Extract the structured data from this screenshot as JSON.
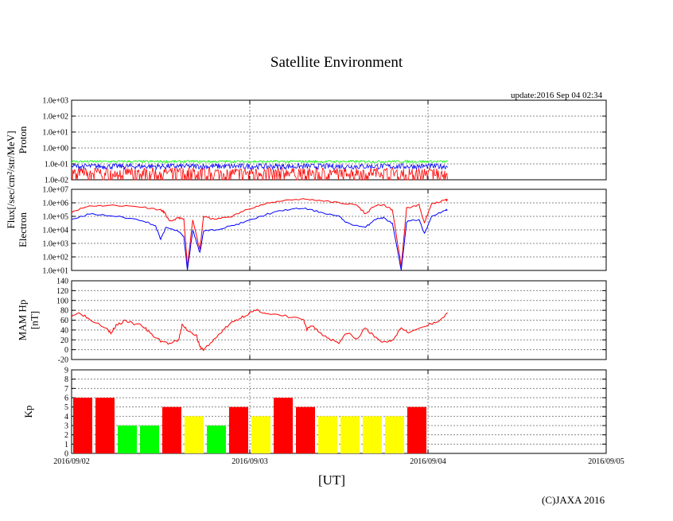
{
  "page": {
    "title": "Satellite Environment",
    "update": "update:2016 Sep 04 02:34",
    "x_unit_label": "[UT]",
    "credit": "(C)JAXA 2016"
  },
  "colors": {
    "red": "#ff0000",
    "blue": "#0000ff",
    "green": "#00ff00",
    "yellow": "#ffff00",
    "grid": "#888888"
  },
  "chart_data": [
    {
      "id": "proton",
      "type": "line",
      "ylabel_lines": [
        "Flux[/sec/cm²/str/MeV]",
        "Proton"
      ],
      "y_scale": "log",
      "ylim": [
        0.01,
        1000
      ],
      "y_ticks": [
        "1.0e-02",
        "1.0e-01",
        "1.0e+00",
        "1.0e+01",
        "1.0e+02",
        "1.0e+03"
      ],
      "x_days_range": [
        0,
        3
      ],
      "series": [
        {
          "name": "red",
          "color": "#ff0000",
          "level": 0.03,
          "spread": 0.6,
          "spikes_to_floor": true
        },
        {
          "name": "blue",
          "color": "#0000ff",
          "level": 0.07,
          "spread": 0.35
        },
        {
          "name": "green",
          "color": "#00ff00",
          "level": 0.14,
          "spread": 0.15
        }
      ],
      "data_end_day": 2.11
    },
    {
      "id": "electron",
      "type": "line",
      "ylabel_lines": [
        "Electron"
      ],
      "y_scale": "log",
      "ylim": [
        10,
        10000000
      ],
      "y_ticks": [
        "1.0e+01",
        "1.0e+02",
        "1.0e+03",
        "1.0e+04",
        "1.0e+05",
        "1.0e+06",
        "1.0e+07"
      ],
      "series": [
        {
          "name": "red",
          "color": "#ff0000",
          "points": [
            [
              0,
              220000
            ],
            [
              0.1,
              600000
            ],
            [
              0.25,
              650000
            ],
            [
              0.4,
              500000
            ],
            [
              0.5,
              300000
            ],
            [
              0.52,
              200000
            ],
            [
              0.55,
              40000
            ],
            [
              0.6,
              80000
            ],
            [
              0.63,
              60000
            ],
            [
              0.65,
              20
            ],
            [
              0.68,
              60000
            ],
            [
              0.72,
              300
            ],
            [
              0.74,
              100000
            ],
            [
              0.8,
              60000
            ],
            [
              0.9,
              100000
            ],
            [
              1.0,
              400000
            ],
            [
              1.1,
              900000
            ],
            [
              1.2,
              1600000
            ],
            [
              1.3,
              1900000
            ],
            [
              1.4,
              1500000
            ],
            [
              1.5,
              1000000
            ],
            [
              1.6,
              700000
            ],
            [
              1.65,
              150000
            ],
            [
              1.7,
              600000
            ],
            [
              1.75,
              700000
            ],
            [
              1.8,
              300000
            ],
            [
              1.85,
              20
            ],
            [
              1.88,
              400000
            ],
            [
              1.95,
              700000
            ],
            [
              1.98,
              30000
            ],
            [
              2.02,
              800000
            ],
            [
              2.1,
              1600000
            ],
            [
              2.11,
              1800000
            ]
          ]
        },
        {
          "name": "blue",
          "color": "#0000ff",
          "points": [
            [
              0,
              60000
            ],
            [
              0.1,
              150000
            ],
            [
              0.25,
              100000
            ],
            [
              0.4,
              50000
            ],
            [
              0.47,
              20000
            ],
            [
              0.5,
              2000
            ],
            [
              0.53,
              15000
            ],
            [
              0.6,
              8000
            ],
            [
              0.63,
              3000
            ],
            [
              0.65,
              10
            ],
            [
              0.68,
              10000
            ],
            [
              0.72,
              200
            ],
            [
              0.74,
              8000
            ],
            [
              0.8,
              10000
            ],
            [
              0.9,
              20000
            ],
            [
              1.0,
              50000
            ],
            [
              1.1,
              150000
            ],
            [
              1.2,
              300000
            ],
            [
              1.3,
              400000
            ],
            [
              1.4,
              200000
            ],
            [
              1.5,
              100000
            ],
            [
              1.55,
              30000
            ],
            [
              1.65,
              15000
            ],
            [
              1.7,
              60000
            ],
            [
              1.75,
              80000
            ],
            [
              1.8,
              30000
            ],
            [
              1.85,
              10
            ],
            [
              1.88,
              40000
            ],
            [
              1.95,
              60000
            ],
            [
              1.98,
              5000
            ],
            [
              2.02,
              100000
            ],
            [
              2.1,
              300000
            ],
            [
              2.11,
              300000
            ]
          ]
        }
      ]
    },
    {
      "id": "mam_hp",
      "type": "line",
      "ylabel_lines": [
        "MAM Hp",
        "[nT]"
      ],
      "y_scale": "linear",
      "ylim": [
        -20,
        140
      ],
      "y_ticks": [
        "-20",
        "0",
        "20",
        "40",
        "60",
        "80",
        "100",
        "120",
        "140"
      ],
      "series": [
        {
          "name": "Hp",
          "color": "#ff0000",
          "points": [
            [
              0,
              70
            ],
            [
              0.05,
              75
            ],
            [
              0.1,
              62
            ],
            [
              0.2,
              45
            ],
            [
              0.22,
              32
            ],
            [
              0.25,
              50
            ],
            [
              0.3,
              58
            ],
            [
              0.4,
              48
            ],
            [
              0.45,
              30
            ],
            [
              0.5,
              18
            ],
            [
              0.55,
              12
            ],
            [
              0.6,
              18
            ],
            [
              0.62,
              50
            ],
            [
              0.65,
              40
            ],
            [
              0.7,
              30
            ],
            [
              0.72,
              5
            ],
            [
              0.74,
              0
            ],
            [
              0.8,
              20
            ],
            [
              0.85,
              40
            ],
            [
              0.9,
              55
            ],
            [
              0.95,
              65
            ],
            [
              1.0,
              75
            ],
            [
              1.05,
              80
            ],
            [
              1.1,
              72
            ],
            [
              1.2,
              68
            ],
            [
              1.3,
              62
            ],
            [
              1.32,
              40
            ],
            [
              1.35,
              50
            ],
            [
              1.4,
              32
            ],
            [
              1.45,
              22
            ],
            [
              1.5,
              15
            ],
            [
              1.55,
              35
            ],
            [
              1.6,
              20
            ],
            [
              1.65,
              45
            ],
            [
              1.7,
              25
            ],
            [
              1.75,
              15
            ],
            [
              1.8,
              20
            ],
            [
              1.85,
              45
            ],
            [
              1.9,
              35
            ],
            [
              2.0,
              50
            ],
            [
              2.05,
              55
            ],
            [
              2.11,
              75
            ]
          ]
        }
      ]
    },
    {
      "id": "kp",
      "type": "bar",
      "ylabel_lines": [
        "Kp"
      ],
      "ylim": [
        0,
        9
      ],
      "y_ticks": [
        "0",
        "1",
        "2",
        "3",
        "4",
        "5",
        "6",
        "7",
        "8",
        "9"
      ],
      "x_tick_labels": [
        "2016/09/02",
        "2016/09/03",
        "2016/09/04",
        "2016/09/05"
      ],
      "bars": [
        {
          "value": 6,
          "color": "#ff0000"
        },
        {
          "value": 6,
          "color": "#ff0000"
        },
        {
          "value": 3,
          "color": "#00ff00"
        },
        {
          "value": 3,
          "color": "#00ff00"
        },
        {
          "value": 5,
          "color": "#ff0000"
        },
        {
          "value": 4,
          "color": "#ffff00"
        },
        {
          "value": 3,
          "color": "#00ff00"
        },
        {
          "value": 5,
          "color": "#ff0000"
        },
        {
          "value": 4,
          "color": "#ffff00"
        },
        {
          "value": 6,
          "color": "#ff0000"
        },
        {
          "value": 5,
          "color": "#ff0000"
        },
        {
          "value": 4,
          "color": "#ffff00"
        },
        {
          "value": 4,
          "color": "#ffff00"
        },
        {
          "value": 4,
          "color": "#ffff00"
        },
        {
          "value": 4,
          "color": "#ffff00"
        },
        {
          "value": 5,
          "color": "#ff0000"
        }
      ]
    }
  ]
}
